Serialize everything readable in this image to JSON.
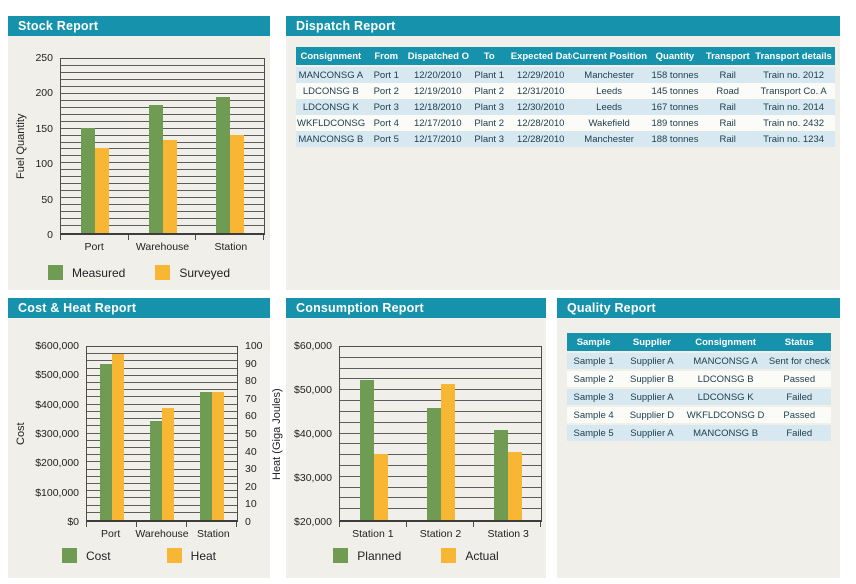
{
  "colors": {
    "teal": "#1692ad",
    "green": "#6f9b52",
    "orange": "#f7b633",
    "panel_bg": "#f0efea",
    "row_alt_blue": "#d7e8f1"
  },
  "panels": {
    "stock": {
      "title": "Stock Report"
    },
    "dispatch": {
      "title": "Dispatch Report",
      "table": {
        "columns": [
          "Consignment",
          "From",
          "Dispatched On",
          "To",
          "Expected Date",
          "Current Position",
          "Quantity",
          "Transport",
          "Transport details"
        ],
        "rows": [
          [
            "MANCONSG A",
            "Port 1",
            "12/20/2010",
            "Plant 1",
            "12/29/2010",
            "Manchester",
            "158 tonnes",
            "Rail",
            "Train no. 2012"
          ],
          [
            "LDCONSG B",
            "Port 2",
            "12/19/2010",
            "Plant 2",
            "12/31/2010",
            "Leeds",
            "145 tonnes",
            "Road",
            "Transport Co. A"
          ],
          [
            "LDCONSG K",
            "Port 3",
            "12/18/2010",
            "Plant 3",
            "12/30/2010",
            "Leeds",
            "167 tonnes",
            "Rail",
            "Train no. 2014"
          ],
          [
            "WKFLDCONSG D",
            "Port 4",
            "12/17/2010",
            "Plant 2",
            "12/28/2010",
            "Wakefield",
            "189 tonnes",
            "Rail",
            "Train no. 2432"
          ],
          [
            "MANCONSG B",
            "Port 5",
            "12/17/2010",
            "Plant 3",
            "12/28/2010",
            "Manchester",
            "188 tonnes",
            "Rail",
            "Train no. 1234"
          ]
        ]
      }
    },
    "cost_heat": {
      "title": "Cost & Heat Report"
    },
    "consumption": {
      "title": "Consumption Report"
    },
    "quality": {
      "title": "Quality Report",
      "table": {
        "columns": [
          "Sample",
          "Supplier",
          "Consignment",
          "Status"
        ],
        "rows": [
          [
            "Sample 1",
            "Supplier A",
            "MANCONSG A",
            "Sent for check"
          ],
          [
            "Sample 2",
            "Supplier B",
            "LDCONSG B",
            "Passed"
          ],
          [
            "Sample 3",
            "Supplier A",
            "LDCONSG K",
            "Failed"
          ],
          [
            "Sample 4",
            "Supplier D",
            "WKFLDCONSG D",
            "Passed"
          ],
          [
            "Sample 5",
            "Supplier A",
            "MANCONSG B",
            "Failed"
          ]
        ]
      }
    }
  },
  "chart_data": [
    {
      "id": "stock",
      "type": "bar",
      "title": "Stock Report",
      "categories": [
        "Port",
        "Warehouse",
        "Station"
      ],
      "series": [
        {
          "name": "Measured",
          "color_key": "green",
          "axis": "left",
          "values": [
            151,
            184,
            195
          ]
        },
        {
          "name": "Surveyed",
          "color_key": "orange",
          "axis": "left",
          "values": [
            122,
            134,
            141
          ]
        }
      ],
      "y_axis": {
        "title": "Fuel Quantity",
        "min": 0,
        "max": 250,
        "tick_labels": [
          "0",
          "50",
          "100",
          "150",
          "200",
          "250"
        ],
        "minor_divisions": 25
      },
      "grid": true,
      "legend_position": "bottom"
    },
    {
      "id": "cost_heat",
      "type": "bar",
      "title": "Cost & Heat Report",
      "categories": [
        "Port",
        "Warehouse",
        "Station"
      ],
      "series": [
        {
          "name": "Cost",
          "color_key": "green",
          "axis": "left",
          "values": [
            540000,
            343000,
            445000
          ]
        },
        {
          "name": "Heat",
          "color_key": "orange",
          "axis": "right",
          "values": [
            96,
            65,
            74
          ]
        }
      ],
      "y_axis": {
        "title": "Cost",
        "min": 0,
        "max": 600000,
        "tick_labels": [
          "$0",
          "$100,000",
          "$200,000",
          "$300,000",
          "$400,000",
          "$500,000",
          "$600,000"
        ],
        "minor_divisions": 24
      },
      "y2_axis": {
        "title": "Heat (Giga Joules)",
        "min": 0,
        "max": 100,
        "tick_labels": [
          "0",
          "10",
          "20",
          "30",
          "40",
          "50",
          "60",
          "70",
          "80",
          "90",
          "100"
        ]
      },
      "grid": true,
      "legend_position": "bottom"
    },
    {
      "id": "consumption",
      "type": "bar",
      "title": "Consumption Report",
      "categories": [
        "Station 1",
        "Station 2",
        "Station 3"
      ],
      "series": [
        {
          "name": "Planned",
          "color_key": "green",
          "axis": "left",
          "values": [
            52300,
            46000,
            40900
          ]
        },
        {
          "name": "Actual",
          "color_key": "orange",
          "axis": "left",
          "values": [
            35300,
            51400,
            35800
          ]
        }
      ],
      "y_axis": {
        "title": "",
        "min": 20000,
        "max": 60000,
        "tick_labels": [
          "$20,000",
          "$30,000",
          "$40,000",
          "$50,000",
          "$60,000"
        ],
        "minor_divisions": 16
      },
      "grid": true,
      "legend_position": "bottom"
    }
  ]
}
